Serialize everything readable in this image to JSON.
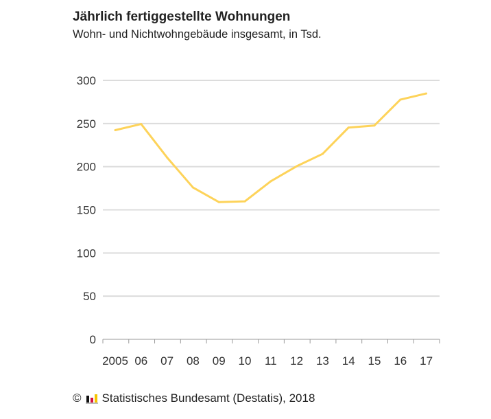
{
  "chart_data": {
    "type": "line",
    "title": "Jährlich fertiggestellte Wohnungen",
    "subtitle": "Wohn- und Nichtwohngebäude insgesamt, in Tsd.",
    "categories": [
      "2005",
      "06",
      "07",
      "08",
      "09",
      "10",
      "11",
      "12",
      "13",
      "14",
      "15",
      "16",
      "17"
    ],
    "series": [
      {
        "values": [
          242.3,
          249.4,
          210.7,
          175.9,
          159.0,
          159.8,
          183.1,
          200.5,
          214.8,
          245.3,
          247.7,
          277.7,
          284.8
        ]
      }
    ],
    "yticks": [
      0,
      50,
      100,
      150,
      200,
      250,
      300
    ],
    "ylim": [
      0,
      300
    ],
    "grid": true,
    "line_color": "#fdd35a"
  },
  "footer": {
    "copyright": "©",
    "source": "Statistisches Bundesamt (Destatis), 2018",
    "logo_colors": [
      "#111111",
      "#d8123d",
      "#f5c400"
    ]
  }
}
